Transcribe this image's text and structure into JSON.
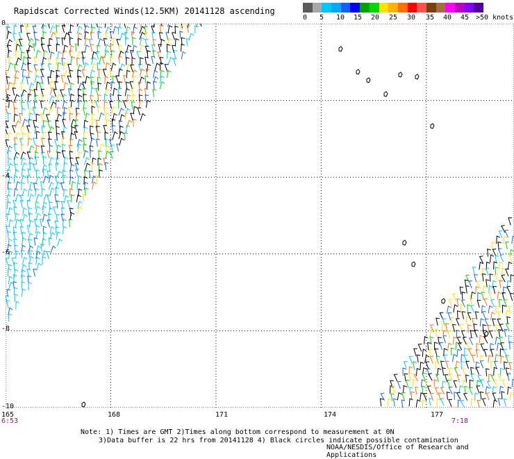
{
  "title": "Rapidscat Corrected Winds(12.5KM) 20141128 ascending",
  "legend": {
    "colors": [
      "#5a5a5a",
      "#a8a8a8",
      "#00c8ff",
      "#00aaff",
      "#1060ff",
      "#0000ff",
      "#00a000",
      "#00d800",
      "#ffe000",
      "#ffb000",
      "#ff7000",
      "#ff0000",
      "#ff5050",
      "#7a4010",
      "#a07040",
      "#ff00ff",
      "#c000c0",
      "#8000ff",
      "#5000a0"
    ],
    "labels": [
      "0",
      "5",
      "10",
      "15",
      "20",
      "25",
      "30",
      "35",
      "40",
      "45",
      ">50 knots"
    ]
  },
  "axes": {
    "x_labels": [
      "165",
      "168",
      "171",
      "174",
      "177"
    ],
    "y_labels": [
      "0",
      "-2",
      "-4",
      "-6",
      "-8",
      "-10"
    ],
    "x_range": [
      165,
      179.5
    ],
    "y_range": [
      -10,
      0
    ]
  },
  "times": {
    "left": "6:53",
    "right": "7:18"
  },
  "notes": {
    "line1": "Note: 1) Times are GMT 2)Times along bottom correspond to measurement at 0N",
    "line2": "3)Data buffer is 22 hrs from 20141128 4) Black circles indicate possible contamination"
  },
  "credit": "NOAA/NESDIS/Office of Research and Applications"
}
